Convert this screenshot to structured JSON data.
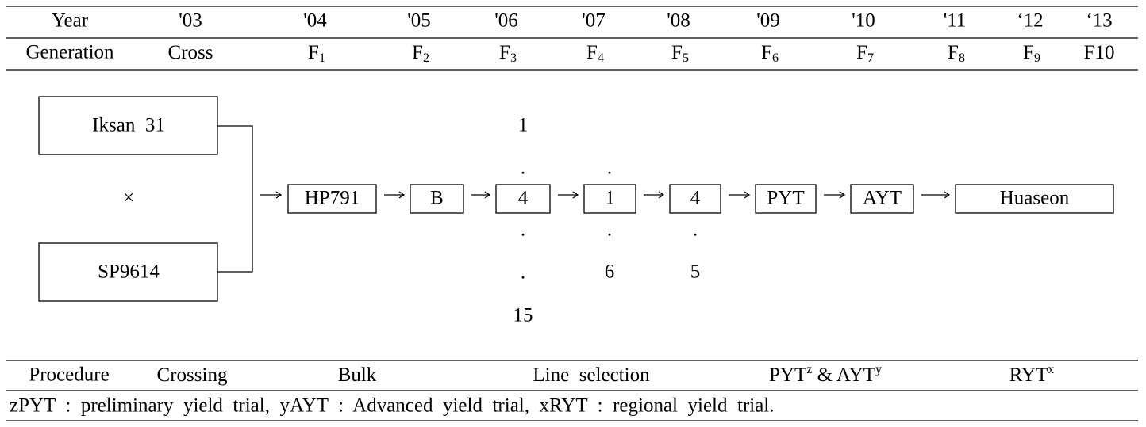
{
  "header": {
    "year_label": "Year",
    "years": [
      "'03",
      "'04",
      "'05",
      "'06",
      "'07",
      "'08",
      "'09",
      "'10",
      "'11",
      "‘12",
      "‘13"
    ],
    "generation_label": "Generation",
    "generations": [
      {
        "text": "Cross"
      },
      {
        "text": "F",
        "sub": "1"
      },
      {
        "text": "F",
        "sub": "2"
      },
      {
        "text": "F",
        "sub": "3"
      },
      {
        "text": "F",
        "sub": "4"
      },
      {
        "text": "F",
        "sub": "5"
      },
      {
        "text": "F",
        "sub": "6"
      },
      {
        "text": "F",
        "sub": "7"
      },
      {
        "text": "F",
        "sub": "8"
      },
      {
        "text": "F",
        "sub": "9"
      },
      {
        "text": "F10"
      }
    ]
  },
  "parents": {
    "female": "Iksan  31",
    "cross_symbol": "×",
    "male": "SP9614"
  },
  "nodes": [
    {
      "label": "HP791"
    },
    {
      "label": "B"
    },
    {
      "label": "4"
    },
    {
      "label": "1"
    },
    {
      "label": "4"
    },
    {
      "label": "PYT"
    },
    {
      "label": "AYT"
    },
    {
      "label": "Huaseon"
    }
  ],
  "selection": {
    "f3": {
      "top": "1",
      "above": ".",
      "below": ".",
      "lower": ".",
      "bottom": "15"
    },
    "f4": {
      "above": ".",
      "below": ".",
      "bottom": "6"
    },
    "f5": {
      "below": ".",
      "bottom": "5"
    }
  },
  "procedure": {
    "label": "Procedure",
    "steps": [
      {
        "text": "Crossing"
      },
      {
        "text": "Bulk"
      },
      {
        "text": "Line  selection"
      },
      {
        "parts": [
          {
            "text": "PYT",
            "sup": "z"
          },
          {
            "text": " & AYT",
            "sup": "y"
          }
        ]
      },
      {
        "parts": [
          {
            "text": "RYT",
            "sup": "x"
          }
        ]
      }
    ]
  },
  "footnote": "zPYT  :  preliminary  yield  trial,  yAYT  :  Advanced  yield  trial,  xRYT  :  regional  yield  trial."
}
